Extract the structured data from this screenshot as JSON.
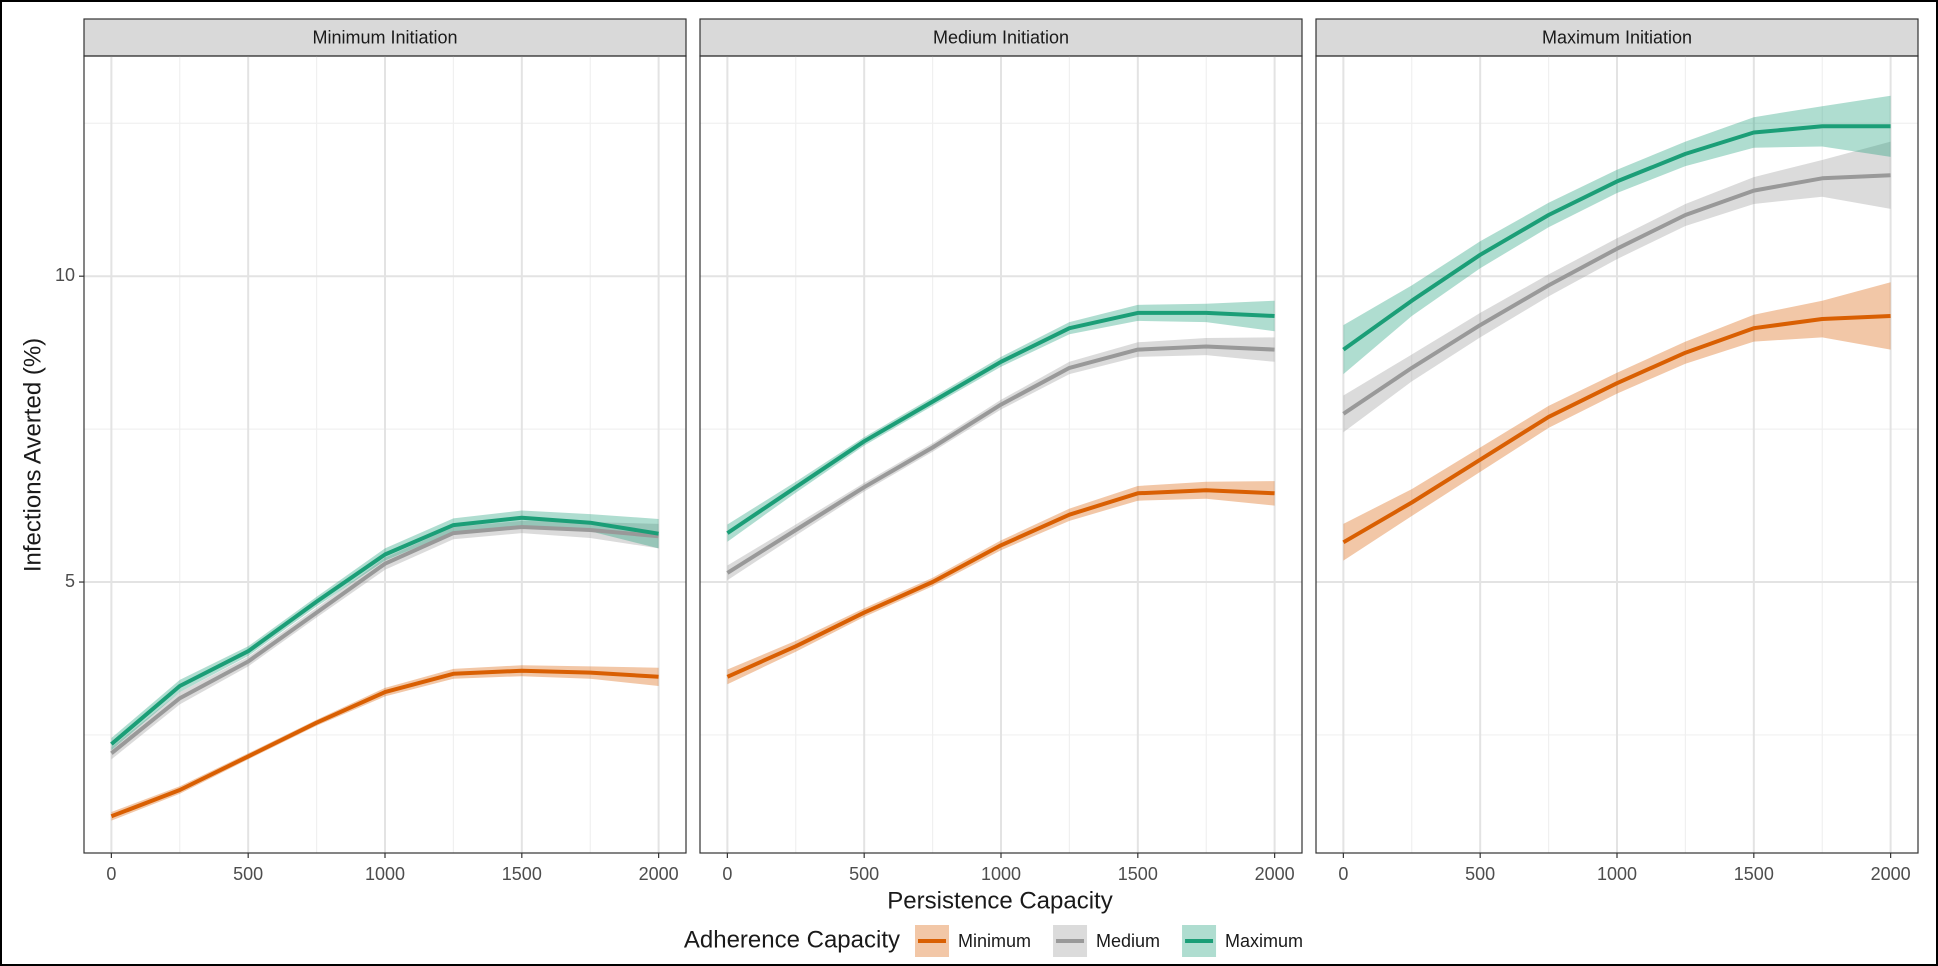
{
  "chart_data": [
    {
      "type": "line",
      "title": "Minimum Initiation",
      "x_label": "Persistence Capacity",
      "y_label": "Infections Averted (%)",
      "legend_title": "Adherence Capacity",
      "x": [
        0,
        250,
        500,
        750,
        1000,
        1250,
        1500,
        1750,
        2000
      ],
      "xlim": [
        -100,
        2100
      ],
      "xticks": [
        0,
        500,
        1000,
        1500,
        2000
      ],
      "xminor": [
        250,
        750,
        1250,
        1750
      ],
      "ylim": [
        0.57,
        13.6
      ],
      "yticks": [
        5,
        10
      ],
      "yminor": [
        2.5,
        7.5,
        12.5
      ],
      "grid": true,
      "series": [
        {
          "name": "Minimum",
          "color": "#d95f02",
          "values": [
            1.17,
            1.6,
            2.15,
            2.7,
            3.2,
            3.5,
            3.55,
            3.52,
            3.45
          ],
          "lower": [
            1.1,
            1.54,
            2.1,
            2.65,
            3.13,
            3.42,
            3.46,
            3.42,
            3.3
          ],
          "upper": [
            1.24,
            1.66,
            2.2,
            2.75,
            3.27,
            3.58,
            3.64,
            3.62,
            3.6
          ]
        },
        {
          "name": "Medium",
          "color": "#999999",
          "values": [
            2.2,
            3.1,
            3.7,
            4.5,
            5.3,
            5.8,
            5.9,
            5.85,
            5.75
          ],
          "lower": [
            2.1,
            3.0,
            3.62,
            4.42,
            5.2,
            5.7,
            5.8,
            5.72,
            5.55
          ],
          "upper": [
            2.3,
            3.2,
            3.78,
            4.58,
            5.4,
            5.9,
            6.0,
            5.98,
            5.95
          ]
        },
        {
          "name": "Maximum",
          "color": "#1b9e77",
          "values": [
            2.35,
            3.3,
            3.87,
            4.68,
            5.45,
            5.93,
            6.05,
            5.97,
            5.79
          ],
          "lower": [
            2.25,
            3.2,
            3.79,
            4.6,
            5.35,
            5.82,
            5.93,
            5.83,
            5.55
          ],
          "upper": [
            2.45,
            3.4,
            3.95,
            4.76,
            5.55,
            6.04,
            6.17,
            6.11,
            6.03
          ]
        }
      ]
    },
    {
      "type": "line",
      "title": "Medium Initiation",
      "x": [
        0,
        250,
        500,
        750,
        1000,
        1250,
        1500,
        1750,
        2000
      ],
      "xlim": [
        -100,
        2100
      ],
      "xticks": [
        0,
        500,
        1000,
        1500,
        2000
      ],
      "xminor": [
        250,
        750,
        1250,
        1750
      ],
      "ylim": [
        0.57,
        13.6
      ],
      "yticks": [
        5,
        10
      ],
      "yminor": [
        2.5,
        7.5,
        12.5
      ],
      "grid": true,
      "series": [
        {
          "name": "Minimum",
          "color": "#d95f02",
          "values": [
            3.45,
            3.95,
            4.5,
            5.0,
            5.6,
            6.1,
            6.45,
            6.5,
            6.45
          ],
          "lower": [
            3.33,
            3.86,
            4.43,
            4.93,
            5.52,
            6.0,
            6.33,
            6.36,
            6.25
          ],
          "upper": [
            3.57,
            4.04,
            4.57,
            5.07,
            5.68,
            6.2,
            6.57,
            6.64,
            6.65
          ]
        },
        {
          "name": "Medium",
          "color": "#999999",
          "values": [
            5.15,
            5.85,
            6.55,
            7.2,
            7.9,
            8.5,
            8.8,
            8.85,
            8.8
          ],
          "lower": [
            5.03,
            5.76,
            6.48,
            7.13,
            7.82,
            8.4,
            8.68,
            8.71,
            8.6
          ],
          "upper": [
            5.27,
            5.94,
            6.62,
            7.27,
            7.98,
            8.6,
            8.92,
            8.99,
            9.0
          ]
        },
        {
          "name": "Maximum",
          "color": "#1b9e77",
          "values": [
            5.8,
            6.55,
            7.3,
            7.95,
            8.6,
            9.15,
            9.4,
            9.4,
            9.35
          ],
          "lower": [
            5.66,
            6.46,
            7.23,
            7.88,
            8.52,
            9.05,
            9.27,
            9.25,
            9.1
          ],
          "upper": [
            5.94,
            6.64,
            7.37,
            8.02,
            8.68,
            9.25,
            9.53,
            9.55,
            9.6
          ]
        }
      ]
    },
    {
      "type": "line",
      "title": "Maximum Initiation",
      "x": [
        0,
        250,
        500,
        750,
        1000,
        1250,
        1500,
        1750,
        2000
      ],
      "xlim": [
        -100,
        2100
      ],
      "xticks": [
        0,
        500,
        1000,
        1500,
        2000
      ],
      "xminor": [
        250,
        750,
        1250,
        1750
      ],
      "ylim": [
        0.57,
        13.6
      ],
      "yticks": [
        5,
        10
      ],
      "yminor": [
        2.5,
        7.5,
        12.5
      ],
      "grid": true,
      "series": [
        {
          "name": "Minimum",
          "color": "#d95f02",
          "values": [
            5.65,
            6.3,
            7.0,
            7.7,
            8.25,
            8.75,
            9.15,
            9.3,
            9.35
          ],
          "lower": [
            5.35,
            6.08,
            6.8,
            7.52,
            8.08,
            8.57,
            8.93,
            9.0,
            8.8
          ],
          "upper": [
            5.95,
            6.52,
            7.2,
            7.88,
            8.42,
            8.93,
            9.37,
            9.6,
            9.9
          ]
        },
        {
          "name": "Medium",
          "color": "#999999",
          "values": [
            7.75,
            8.5,
            9.2,
            9.85,
            10.45,
            11.0,
            11.4,
            11.6,
            11.65
          ],
          "lower": [
            7.45,
            8.28,
            9.0,
            9.67,
            10.28,
            10.82,
            11.18,
            11.3,
            11.1
          ],
          "upper": [
            8.05,
            8.72,
            9.4,
            10.03,
            10.62,
            11.18,
            11.62,
            11.9,
            12.2
          ]
        },
        {
          "name": "Maximum",
          "color": "#1b9e77",
          "values": [
            8.8,
            9.6,
            10.35,
            11.0,
            11.55,
            12.0,
            12.35,
            12.45,
            12.45
          ],
          "lower": [
            8.4,
            9.35,
            10.13,
            10.8,
            11.36,
            11.8,
            12.1,
            12.12,
            11.95
          ],
          "upper": [
            9.2,
            9.85,
            10.57,
            11.2,
            11.74,
            12.2,
            12.6,
            12.78,
            12.95
          ]
        }
      ]
    }
  ]
}
